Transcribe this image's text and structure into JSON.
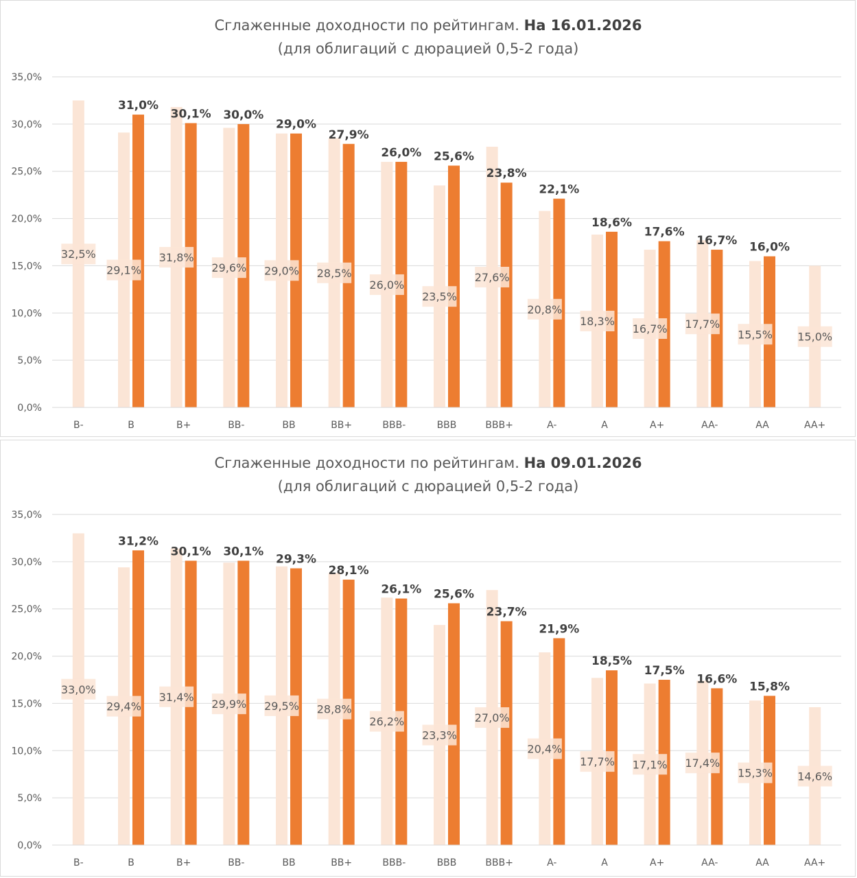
{
  "colors": {
    "previous": "#fbe5d6",
    "current": "#ed7d31",
    "grid": "#d9d9d9",
    "text": "#595959"
  },
  "chart_data": [
    {
      "type": "bar",
      "title": "Сглаженные доходности по рейтингам.",
      "title_date": "На 16.01.2026",
      "subtitle": "(для облигаций с дюрацией 0,5-2 года)",
      "xlabel": "",
      "ylabel": "",
      "ylim": [
        0,
        35
      ],
      "yticks": [
        "0,0%",
        "5,0%",
        "10,0%",
        "15,0%",
        "20,0%",
        "25,0%",
        "30,0%",
        "35,0%"
      ],
      "categories": [
        "B-",
        "B",
        "B+",
        "BB-",
        "BB",
        "BB+",
        "BBB-",
        "BBB",
        "BBB+",
        "A-",
        "A",
        "A+",
        "AA-",
        "AA",
        "AA+"
      ],
      "grid": true,
      "legend": "none",
      "series": [
        {
          "values": [
            32.5,
            29.1,
            31.8,
            29.6,
            29.0,
            28.5,
            26.0,
            23.5,
            27.6,
            20.8,
            18.3,
            16.7,
            17.7,
            15.5,
            15.0
          ],
          "labels": [
            "32,5%",
            "29,1%",
            "31,8%",
            "29,6%",
            "29,0%",
            "28,5%",
            "26,0%",
            "23,5%",
            "27,6%",
            "20,8%",
            "18,3%",
            "16,7%",
            "17,7%",
            "15,5%",
            "15,0%"
          ]
        },
        {
          "values": [
            null,
            31.0,
            30.1,
            30.0,
            29.0,
            27.9,
            26.0,
            25.6,
            23.8,
            22.1,
            18.6,
            17.6,
            16.7,
            16.0,
            null
          ],
          "labels": [
            "",
            "31,0%",
            "30,1%",
            "30,0%",
            "29,0%",
            "27,9%",
            "26,0%",
            "25,6%",
            "23,8%",
            "22,1%",
            "18,6%",
            "17,6%",
            "16,7%",
            "16,0%",
            ""
          ]
        }
      ]
    },
    {
      "type": "bar",
      "title": "Сглаженные доходности по рейтингам.",
      "title_date": "На 09.01.2026",
      "subtitle": "(для облигаций с дюрацией 0,5-2 года)",
      "xlabel": "",
      "ylabel": "",
      "ylim": [
        0,
        35
      ],
      "yticks": [
        "0,0%",
        "5,0%",
        "10,0%",
        "15,0%",
        "20,0%",
        "25,0%",
        "30,0%",
        "35,0%"
      ],
      "categories": [
        "B-",
        "B",
        "B+",
        "BB-",
        "BB",
        "BB+",
        "BBB-",
        "BBB",
        "BBB+",
        "A-",
        "A",
        "A+",
        "AA-",
        "AA",
        "AA+"
      ],
      "grid": true,
      "legend": "none",
      "series": [
        {
          "values": [
            33.0,
            29.4,
            31.4,
            29.9,
            29.5,
            28.8,
            26.2,
            23.3,
            27.0,
            20.4,
            17.7,
            17.1,
            17.4,
            15.3,
            14.6
          ],
          "labels": [
            "33,0%",
            "29,4%",
            "31,4%",
            "29,9%",
            "29,5%",
            "28,8%",
            "26,2%",
            "23,3%",
            "27,0%",
            "20,4%",
            "17,7%",
            "17,1%",
            "17,4%",
            "15,3%",
            "14,6%"
          ]
        },
        {
          "values": [
            null,
            31.2,
            30.1,
            30.1,
            29.3,
            28.1,
            26.1,
            25.6,
            23.7,
            21.9,
            18.5,
            17.5,
            16.6,
            15.8,
            null
          ],
          "labels": [
            "",
            "31,2%",
            "30,1%",
            "30,1%",
            "29,3%",
            "28,1%",
            "26,1%",
            "25,6%",
            "23,7%",
            "21,9%",
            "18,5%",
            "17,5%",
            "16,6%",
            "15,8%",
            ""
          ]
        }
      ]
    }
  ]
}
